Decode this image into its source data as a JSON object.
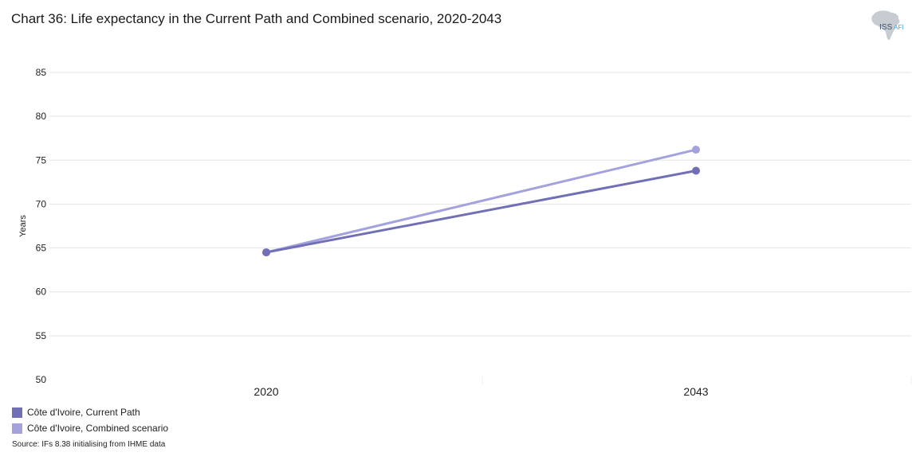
{
  "header": {
    "title": "Chart 36: Life expectancy in the Current Path and Combined scenario, 2020-2043",
    "logo_main": "ISS",
    "logo_sub": "AFI"
  },
  "footer": {
    "source": "Source: IFs 8.38 initialising from IHME data"
  },
  "chart_data": {
    "type": "line",
    "title": "Chart 36: Life expectancy in the Current Path and Combined scenario, 2020-2043",
    "xlabel": "",
    "ylabel": "Years",
    "categories": [
      "2020",
      "2043"
    ],
    "ylim": [
      50,
      85
    ],
    "yticks": [
      50,
      55,
      60,
      65,
      70,
      75,
      80,
      85
    ],
    "grid": true,
    "legend_position": "bottom-left",
    "series": [
      {
        "name": "Côte d'Ivoire, Current Path",
        "values": [
          64.5,
          73.8
        ],
        "color": "#7170b6"
      },
      {
        "name": "Côte d'Ivoire, Combined scenario",
        "values": [
          64.5,
          76.2
        ],
        "color": "#a3a2dc"
      }
    ]
  }
}
